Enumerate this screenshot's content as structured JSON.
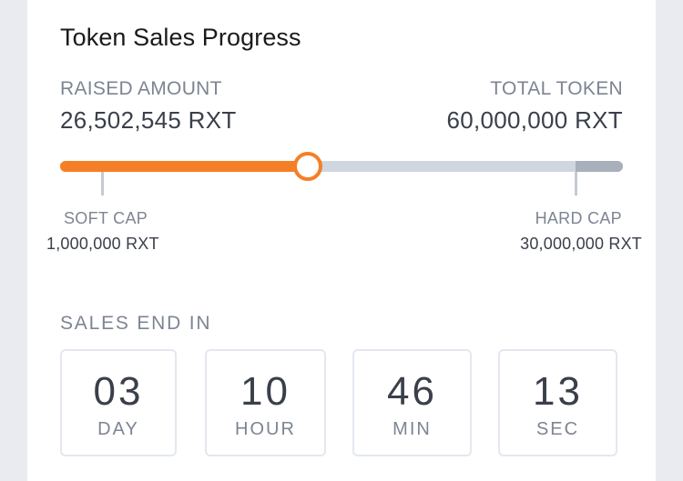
{
  "title": "Token Sales Progress",
  "raised": {
    "label": "RAISED AMOUNT",
    "value": "26,502,545 RXT"
  },
  "total": {
    "label": "TOTAL TOKEN",
    "value": "60,000,000 RXT"
  },
  "progress": {
    "fraction": 0.44,
    "accent_color": "#f57f27",
    "track_color": "#cfd6e0"
  },
  "soft_cap": {
    "label": "SOFT CAP",
    "value": "1,000,000 RXT"
  },
  "hard_cap": {
    "label": "HARD CAP",
    "value": "30,000,000 RXT"
  },
  "countdown": {
    "label": "SALES END IN",
    "units": [
      {
        "value": "03",
        "unit": "DAY"
      },
      {
        "value": "10",
        "unit": "HOUR"
      },
      {
        "value": "46",
        "unit": "MIN"
      },
      {
        "value": "13",
        "unit": "SEC"
      }
    ]
  }
}
